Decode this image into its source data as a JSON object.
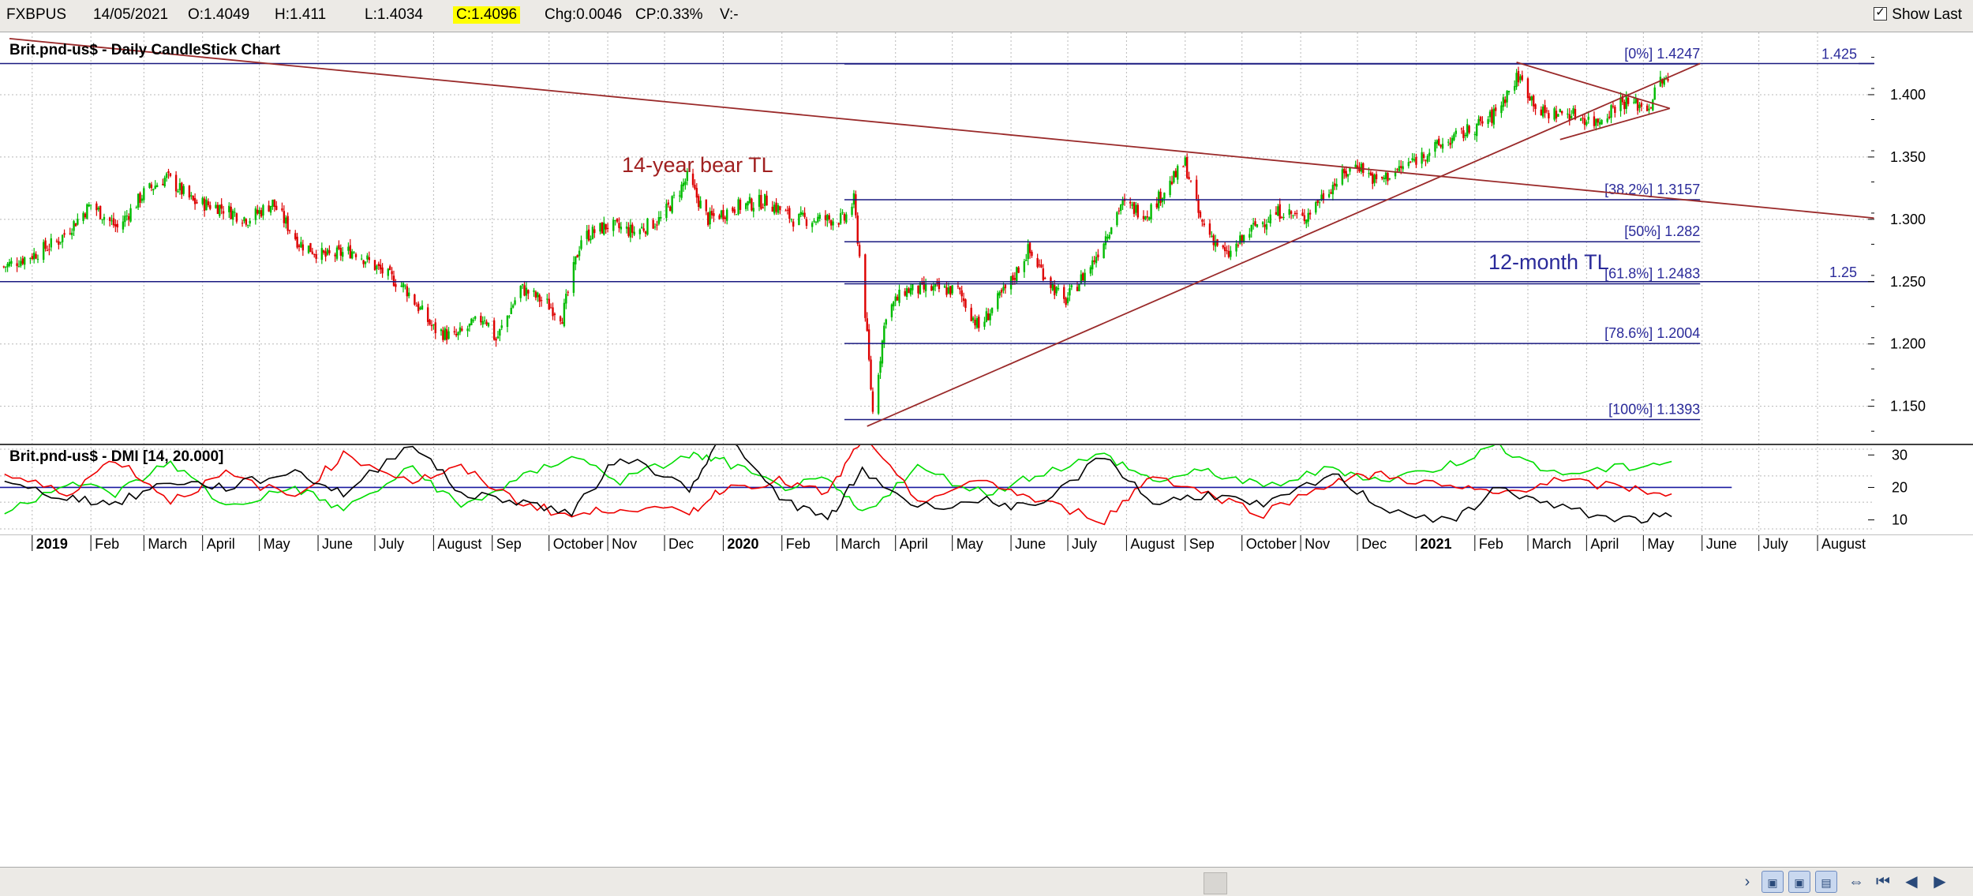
{
  "toolbar": {
    "symbol": "FXBPUS",
    "date": "14/05/2021",
    "open": "O:1.4049",
    "high": "H:1.411",
    "low": "L:1.4034",
    "close": "C:1.4096",
    "change": "Chg:0.0046",
    "change_pct": "CP:0.33%",
    "volume": "V:-",
    "show_last": "Show Last",
    "show_last_checked": true
  },
  "chart_data": [
    {
      "type": "candlestick",
      "title": "Brit.pnd-us$ - Daily CandleStick Chart",
      "x_range": [
        "2018-12-15",
        "2021-08-31"
      ],
      "ylim": [
        1.12,
        1.45
      ],
      "y_ticks": [
        "1.150",
        "1.200",
        "1.250",
        "1.300",
        "1.350",
        "1.400"
      ],
      "grid": true,
      "up_color": "#00bb00",
      "down_color": "#dd0000",
      "close_series": [
        [
          "2018-12-17",
          1.262
        ],
        [
          "2019-01-02",
          1.272
        ],
        [
          "2019-01-15",
          1.283
        ],
        [
          "2019-02-01",
          1.312
        ],
        [
          "2019-02-15",
          1.293
        ],
        [
          "2019-03-01",
          1.321
        ],
        [
          "2019-03-13",
          1.334
        ],
        [
          "2019-03-27",
          1.314
        ],
        [
          "2019-04-10",
          1.31
        ],
        [
          "2019-04-25",
          1.3
        ],
        [
          "2019-05-08",
          1.313
        ],
        [
          "2019-05-22",
          1.281
        ],
        [
          "2019-06-05",
          1.27
        ],
        [
          "2019-06-20",
          1.275
        ],
        [
          "2019-07-03",
          1.26
        ],
        [
          "2019-07-17",
          1.245
        ],
        [
          "2019-08-01",
          1.212
        ],
        [
          "2019-08-12",
          1.205
        ],
        [
          "2019-08-28",
          1.222
        ],
        [
          "2019-09-03",
          1.203
        ],
        [
          "2019-09-16",
          1.245
        ],
        [
          "2019-09-30",
          1.232
        ],
        [
          "2019-10-08",
          1.222
        ],
        [
          "2019-10-18",
          1.285
        ],
        [
          "2019-11-01",
          1.295
        ],
        [
          "2019-11-15",
          1.29
        ],
        [
          "2019-11-29",
          1.3
        ],
        [
          "2019-12-13",
          1.333
        ],
        [
          "2019-12-24",
          1.3
        ],
        [
          "2020-01-08",
          1.31
        ],
        [
          "2020-01-24",
          1.315
        ],
        [
          "2020-02-07",
          1.3
        ],
        [
          "2020-02-21",
          1.3
        ],
        [
          "2020-03-05",
          1.3
        ],
        [
          "2020-03-10",
          1.315
        ],
        [
          "2020-03-16",
          1.225
        ],
        [
          "2020-03-20",
          1.145
        ],
        [
          "2020-03-27",
          1.225
        ],
        [
          "2020-04-06",
          1.243
        ],
        [
          "2020-04-20",
          1.244
        ],
        [
          "2020-05-04",
          1.243
        ],
        [
          "2020-05-15",
          1.213
        ],
        [
          "2020-06-01",
          1.25
        ],
        [
          "2020-06-10",
          1.275
        ],
        [
          "2020-06-29",
          1.233
        ],
        [
          "2020-07-14",
          1.265
        ],
        [
          "2020-07-29",
          1.312
        ],
        [
          "2020-08-12",
          1.305
        ],
        [
          "2020-09-01",
          1.345
        ],
        [
          "2020-09-09",
          1.299
        ],
        [
          "2020-09-23",
          1.27
        ],
        [
          "2020-10-08",
          1.295
        ],
        [
          "2020-10-22",
          1.307
        ],
        [
          "2020-11-02",
          1.3
        ],
        [
          "2020-11-16",
          1.325
        ],
        [
          "2020-12-01",
          1.345
        ],
        [
          "2020-12-11",
          1.33
        ],
        [
          "2020-12-23",
          1.34
        ],
        [
          "2021-01-08",
          1.355
        ],
        [
          "2021-01-25",
          1.368
        ],
        [
          "2021-02-10",
          1.382
        ],
        [
          "2021-02-24",
          1.415
        ],
        [
          "2021-03-08",
          1.385
        ],
        [
          "2021-03-23",
          1.385
        ],
        [
          "2021-04-06",
          1.378
        ],
        [
          "2021-04-19",
          1.395
        ],
        [
          "2021-05-04",
          1.39
        ],
        [
          "2021-05-10",
          1.412
        ],
        [
          "2021-05-14",
          1.4096
        ]
      ],
      "annotations": [
        {
          "text": "14-year bear TL",
          "color": "#a02020"
        },
        {
          "text": "12-month TL",
          "color": "#2a2a9a"
        }
      ],
      "horizontal_levels": [
        {
          "label": "1.425",
          "value": 1.425
        },
        {
          "label": "1.25",
          "value": 1.25
        }
      ],
      "fibonacci": [
        {
          "label": "[0%] 1.4247",
          "value": 1.4247
        },
        {
          "label": "[38.2%] 1.3157",
          "value": 1.3157
        },
        {
          "label": "[50%] 1.282",
          "value": 1.282
        },
        {
          "label": "[61.8%] 1.2483",
          "value": 1.2483
        },
        {
          "label": "[78.6%] 1.2004",
          "value": 1.2004
        },
        {
          "label": "[100%] 1.1393",
          "value": 1.1393
        }
      ],
      "trendlines": [
        {
          "name": "14-year bear TL",
          "from": [
            "2018-12-20",
            1.445
          ],
          "to": [
            "2021-08-31",
            1.301
          ],
          "color": "#9a2a2a"
        },
        {
          "name": "12-month TL",
          "from": [
            "2020-03-17",
            1.134
          ],
          "to": [
            "2021-05-31",
            1.425
          ],
          "color": "#9a2a2a"
        },
        {
          "name": "wedge-upper",
          "from": [
            "2021-02-23",
            1.426
          ],
          "to": [
            "2021-05-15",
            1.389
          ],
          "color": "#9a2a2a"
        },
        {
          "name": "wedge-lower",
          "from": [
            "2021-03-18",
            1.364
          ],
          "to": [
            "2021-05-15",
            1.389
          ],
          "color": "#9a2a2a"
        }
      ]
    },
    {
      "type": "line",
      "title": "Brit.pnd-us$ - DMI [14, 20.000]",
      "ylim": [
        6,
        33
      ],
      "y_ticks": [
        "10",
        "20",
        "30"
      ],
      "reference_line": 20,
      "series": [
        {
          "color": "#00dd00",
          "values": [
            [
              2018.96,
              12
            ],
            [
              2019.05,
              22
            ],
            [
              2019.12,
              18
            ],
            [
              2019.2,
              28
            ],
            [
              2019.28,
              14
            ],
            [
              2019.38,
              20
            ],
            [
              2019.45,
              13
            ],
            [
              2019.55,
              26
            ],
            [
              2019.62,
              14
            ],
            [
              2019.7,
              22
            ],
            [
              2019.78,
              30
            ],
            [
              2019.85,
              22
            ],
            [
              2019.95,
              30
            ],
            [
              2020.0,
              28
            ],
            [
              2020.08,
              20
            ],
            [
              2020.15,
              22
            ],
            [
              2020.2,
              12
            ],
            [
              2020.28,
              26
            ],
            [
              2020.38,
              18
            ],
            [
              2020.45,
              24
            ],
            [
              2020.55,
              30
            ],
            [
              2020.62,
              22
            ],
            [
              2020.7,
              25
            ],
            [
              2020.78,
              20
            ],
            [
              2020.88,
              26
            ],
            [
              2020.95,
              22
            ],
            [
              2021.05,
              27
            ],
            [
              2021.12,
              33
            ],
            [
              2021.2,
              24
            ],
            [
              2021.3,
              26
            ],
            [
              2021.37,
              28
            ]
          ]
        },
        {
          "color": "#ee0000",
          "values": [
            [
              2018.96,
              24
            ],
            [
              2019.05,
              18
            ],
            [
              2019.12,
              29
            ],
            [
              2019.2,
              16
            ],
            [
              2019.28,
              24
            ],
            [
              2019.38,
              17
            ],
            [
              2019.45,
              30
            ],
            [
              2019.55,
              22
            ],
            [
              2019.62,
              26
            ],
            [
              2019.7,
              16
            ],
            [
              2019.78,
              11
            ],
            [
              2019.85,
              14
            ],
            [
              2019.95,
              12
            ],
            [
              2020.0,
              20
            ],
            [
              2020.08,
              22
            ],
            [
              2020.15,
              18
            ],
            [
              2020.2,
              35
            ],
            [
              2020.28,
              16
            ],
            [
              2020.38,
              22
            ],
            [
              2020.45,
              16
            ],
            [
              2020.55,
              10
            ],
            [
              2020.62,
              24
            ],
            [
              2020.7,
              18
            ],
            [
              2020.78,
              12
            ],
            [
              2020.88,
              22
            ],
            [
              2020.95,
              24
            ],
            [
              2021.05,
              20
            ],
            [
              2021.12,
              18
            ],
            [
              2021.2,
              22
            ],
            [
              2021.3,
              20
            ],
            [
              2021.37,
              18
            ]
          ]
        },
        {
          "color": "#000000",
          "values": [
            [
              2018.96,
              21
            ],
            [
              2019.05,
              17
            ],
            [
              2019.12,
              15
            ],
            [
              2019.2,
              22
            ],
            [
              2019.28,
              20
            ],
            [
              2019.38,
              25
            ],
            [
              2019.45,
              18
            ],
            [
              2019.55,
              34
            ],
            [
              2019.62,
              18
            ],
            [
              2019.7,
              16
            ],
            [
              2019.78,
              12
            ],
            [
              2019.85,
              30
            ],
            [
              2019.95,
              20
            ],
            [
              2020.0,
              36
            ],
            [
              2020.08,
              17
            ],
            [
              2020.15,
              10
            ],
            [
              2020.2,
              25
            ],
            [
              2020.28,
              14
            ],
            [
              2020.38,
              16
            ],
            [
              2020.45,
              13
            ],
            [
              2020.55,
              30
            ],
            [
              2020.62,
              15
            ],
            [
              2020.7,
              18
            ],
            [
              2020.78,
              14
            ],
            [
              2020.88,
              24
            ],
            [
              2020.95,
              14
            ],
            [
              2021.05,
              9
            ],
            [
              2021.12,
              20
            ],
            [
              2021.2,
              14
            ],
            [
              2021.3,
              10
            ],
            [
              2021.37,
              11
            ]
          ]
        }
      ]
    }
  ],
  "x_axis": {
    "labels": [
      {
        "t": "2019-01-01",
        "text": "2019",
        "bold": true
      },
      {
        "t": "2019-02-01",
        "text": "Feb"
      },
      {
        "t": "2019-03-01",
        "text": "March"
      },
      {
        "t": "2019-04-01",
        "text": "April"
      },
      {
        "t": "2019-05-01",
        "text": "May"
      },
      {
        "t": "2019-06-01",
        "text": "June"
      },
      {
        "t": "2019-07-01",
        "text": "July"
      },
      {
        "t": "2019-08-01",
        "text": "August"
      },
      {
        "t": "2019-09-01",
        "text": "Sep"
      },
      {
        "t": "2019-10-01",
        "text": "October"
      },
      {
        "t": "2019-11-01",
        "text": "Nov"
      },
      {
        "t": "2019-12-01",
        "text": "Dec"
      },
      {
        "t": "2020-01-01",
        "text": "2020",
        "bold": true
      },
      {
        "t": "2020-02-01",
        "text": "Feb"
      },
      {
        "t": "2020-03-01",
        "text": "March"
      },
      {
        "t": "2020-04-01",
        "text": "April"
      },
      {
        "t": "2020-05-01",
        "text": "May"
      },
      {
        "t": "2020-06-01",
        "text": "June"
      },
      {
        "t": "2020-07-01",
        "text": "July"
      },
      {
        "t": "2020-08-01",
        "text": "August"
      },
      {
        "t": "2020-09-01",
        "text": "Sep"
      },
      {
        "t": "2020-10-01",
        "text": "October"
      },
      {
        "t": "2020-11-01",
        "text": "Nov"
      },
      {
        "t": "2020-12-01",
        "text": "Dec"
      },
      {
        "t": "2021-01-01",
        "text": "2021",
        "bold": true
      },
      {
        "t": "2021-02-01",
        "text": "Feb"
      },
      {
        "t": "2021-03-01",
        "text": "March"
      },
      {
        "t": "2021-04-01",
        "text": "April"
      },
      {
        "t": "2021-05-01",
        "text": "May"
      },
      {
        "t": "2021-06-01",
        "text": "June"
      },
      {
        "t": "2021-07-01",
        "text": "July"
      },
      {
        "t": "2021-08-01",
        "text": "August"
      }
    ]
  },
  "colors": {
    "grid": "#b8b8b8",
    "horizontal_line": "#1a1a80",
    "fib_text": "#2a2a9a",
    "panel_border": "#404040"
  },
  "navigation": {
    "icons": [
      "scroll-right-icon",
      "zoom-in-icon",
      "zoom-out-icon",
      "cursor-icon",
      "expand-icon",
      "first-icon",
      "previous-icon",
      "next-icon"
    ]
  }
}
